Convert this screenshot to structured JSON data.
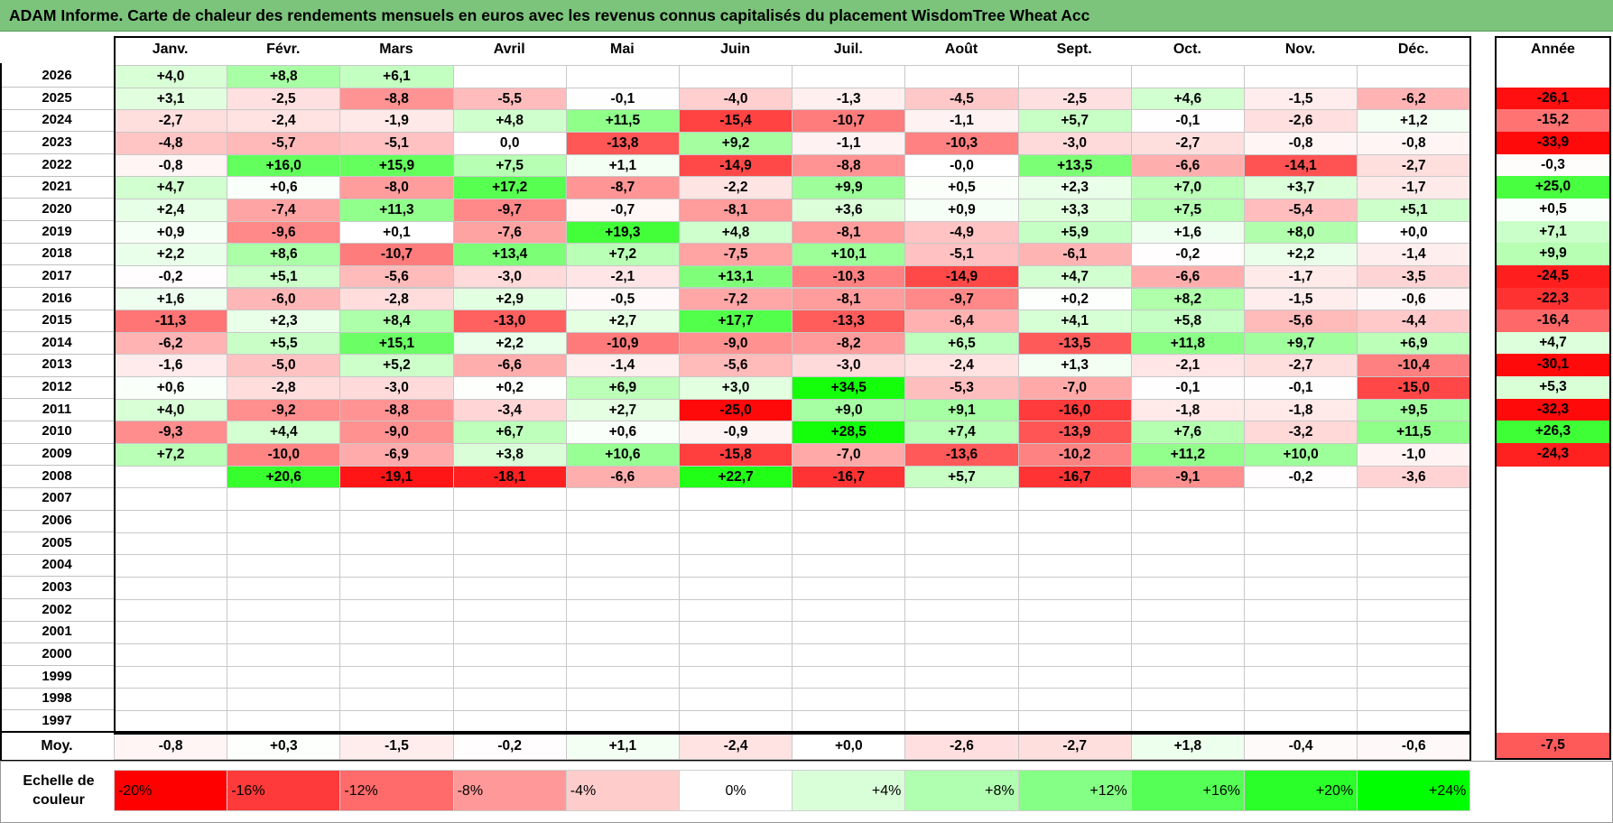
{
  "title": "ADAM Informe. Carte de chaleur des rendements mensuels en euros avec les revenus connus capitalisés du placement WisdomTree Wheat Acc",
  "year_header": "Année",
  "average_label": "Moy.",
  "legend_label": "Echelle de couleur",
  "chart_data": {
    "type": "heatmap",
    "title": "ADAM Informe. Carte de chaleur des rendements mensuels en euros avec les revenus connus capitalisés du placement WisdomTree Wheat Acc",
    "months": [
      "Janv.",
      "Févr.",
      "Mars",
      "Avril",
      "Mai",
      "Juin",
      "Juil.",
      "Août",
      "Sept.",
      "Oct.",
      "Nov.",
      "Déc."
    ],
    "years": [
      "2026",
      "2025",
      "2024",
      "2023",
      "2022",
      "2021",
      "2020",
      "2019",
      "2018",
      "2017",
      "2016",
      "2015",
      "2014",
      "2013",
      "2012",
      "2011",
      "2010",
      "2009",
      "2008",
      "2007",
      "2006",
      "2005",
      "2004",
      "2003",
      "2002",
      "2001",
      "2000",
      "1999",
      "1998",
      "1997"
    ],
    "values": [
      [
        "+4,0",
        "+8,8",
        "+6,1",
        "",
        "",
        "",
        "",
        "",
        "",
        "",
        "",
        ""
      ],
      [
        "+3,1",
        "-2,5",
        "-8,8",
        "-5,5",
        "-0,1",
        "-4,0",
        "-1,3",
        "-4,5",
        "-2,5",
        "+4,6",
        "-1,5",
        "-6,2"
      ],
      [
        "-2,7",
        "-2,4",
        "-1,9",
        "+4,8",
        "+11,5",
        "-15,4",
        "-10,7",
        "-1,1",
        "+5,7",
        "-0,1",
        "-2,6",
        "+1,2"
      ],
      [
        "-4,8",
        "-5,7",
        "-5,1",
        "0,0",
        "-13,8",
        "+9,2",
        "-1,1",
        "-10,3",
        "-3,0",
        "-2,7",
        "-0,8",
        "-0,8"
      ],
      [
        "-0,8",
        "+16,0",
        "+15,9",
        "+7,5",
        "+1,1",
        "-14,9",
        "-8,8",
        "-0,0",
        "+13,5",
        "-6,6",
        "-14,1",
        "-2,7"
      ],
      [
        "+4,7",
        "+0,6",
        "-8,0",
        "+17,2",
        "-8,7",
        "-2,2",
        "+9,9",
        "+0,5",
        "+2,3",
        "+7,0",
        "+3,7",
        "-1,7"
      ],
      [
        "+2,4",
        "-7,4",
        "+11,3",
        "-9,7",
        "-0,7",
        "-8,1",
        "+3,6",
        "+0,9",
        "+3,3",
        "+7,5",
        "-5,4",
        "+5,1"
      ],
      [
        "+0,9",
        "-9,6",
        "+0,1",
        "-7,6",
        "+19,3",
        "+4,8",
        "-8,1",
        "-4,9",
        "+5,9",
        "+1,6",
        "+8,0",
        "+0,0"
      ],
      [
        "+2,2",
        "+8,6",
        "-10,7",
        "+13,4",
        "+7,2",
        "-7,5",
        "+10,1",
        "-5,1",
        "-6,1",
        "-0,2",
        "+2,2",
        "-1,4"
      ],
      [
        "-0,2",
        "+5,1",
        "-5,6",
        "-3,0",
        "-2,1",
        "+13,1",
        "-10,3",
        "-14,9",
        "+4,7",
        "-6,6",
        "-1,7",
        "-3,5"
      ],
      [
        "+1,6",
        "-6,0",
        "-2,8",
        "+2,9",
        "-0,5",
        "-7,2",
        "-8,1",
        "-9,7",
        "+0,2",
        "+8,2",
        "-1,5",
        "-0,6"
      ],
      [
        "-11,3",
        "+2,3",
        "+8,4",
        "-13,0",
        "+2,7",
        "+17,7",
        "-13,3",
        "-6,4",
        "+4,1",
        "+5,8",
        "-5,6",
        "-4,4"
      ],
      [
        "-6,2",
        "+5,5",
        "+15,1",
        "+2,2",
        "-10,9",
        "-9,0",
        "-8,2",
        "+6,5",
        "-13,5",
        "+11,8",
        "+9,7",
        "+6,9"
      ],
      [
        "-1,6",
        "-5,0",
        "+5,2",
        "-6,6",
        "-1,4",
        "-5,6",
        "-3,0",
        "-2,4",
        "+1,3",
        "-2,1",
        "-2,7",
        "-10,4"
      ],
      [
        "+0,6",
        "-2,8",
        "-3,0",
        "+0,2",
        "+6,9",
        "+3,0",
        "+34,5",
        "-5,3",
        "-7,0",
        "-0,1",
        "-0,1",
        "-15,0"
      ],
      [
        "+4,0",
        "-9,2",
        "-8,8",
        "-3,4",
        "+2,7",
        "-25,0",
        "+9,0",
        "+9,1",
        "-16,0",
        "-1,8",
        "-1,8",
        "+9,5"
      ],
      [
        "-9,3",
        "+4,4",
        "-9,0",
        "+6,7",
        "+0,6",
        "-0,9",
        "+28,5",
        "+7,4",
        "-13,9",
        "+7,6",
        "-3,2",
        "+11,5"
      ],
      [
        "+7,2",
        "-10,0",
        "-6,9",
        "+3,8",
        "+10,6",
        "-15,8",
        "-7,0",
        "-13,6",
        "-10,2",
        "+11,2",
        "+10,0",
        "-1,0"
      ],
      [
        "",
        "+20,6",
        "-19,1",
        "-18,1",
        "-6,6",
        "+22,7",
        "-16,7",
        "+5,7",
        "-16,7",
        "-9,1",
        "-0,2",
        "-3,6"
      ],
      [
        "",
        "",
        "",
        "",
        "",
        "",
        "",
        "",
        "",
        "",
        "",
        ""
      ],
      [
        "",
        "",
        "",
        "",
        "",
        "",
        "",
        "",
        "",
        "",
        "",
        ""
      ],
      [
        "",
        "",
        "",
        "",
        "",
        "",
        "",
        "",
        "",
        "",
        "",
        ""
      ],
      [
        "",
        "",
        "",
        "",
        "",
        "",
        "",
        "",
        "",
        "",
        "",
        ""
      ],
      [
        "",
        "",
        "",
        "",
        "",
        "",
        "",
        "",
        "",
        "",
        "",
        ""
      ],
      [
        "",
        "",
        "",
        "",
        "",
        "",
        "",
        "",
        "",
        "",
        "",
        ""
      ],
      [
        "",
        "",
        "",
        "",
        "",
        "",
        "",
        "",
        "",
        "",
        "",
        ""
      ],
      [
        "",
        "",
        "",
        "",
        "",
        "",
        "",
        "",
        "",
        "",
        "",
        ""
      ],
      [
        "",
        "",
        "",
        "",
        "",
        "",
        "",
        "",
        "",
        "",
        "",
        ""
      ],
      [
        "",
        "",
        "",
        "",
        "",
        "",
        "",
        "",
        "",
        "",
        "",
        ""
      ],
      [
        "",
        "",
        "",
        "",
        "",
        "",
        "",
        "",
        "",
        "",
        "",
        ""
      ]
    ],
    "annual": [
      "",
      "-26,1",
      "-15,2",
      "-33,9",
      "-0,3",
      "+25,0",
      "+0,5",
      "+7,1",
      "+9,9",
      "-24,5",
      "-22,3",
      "-16,4",
      "+4,7",
      "-30,1",
      "+5,3",
      "-32,3",
      "+26,3",
      "-24,3",
      "",
      "",
      "",
      "",
      "",
      "",
      "",
      "",
      "",
      "",
      "",
      ""
    ],
    "averages": [
      "-0,8",
      "+0,3",
      "-1,5",
      "-0,2",
      "+1,1",
      "-2,4",
      "+0,0",
      "-2,6",
      "-2,7",
      "+1,8",
      "-0,4",
      "-0,6"
    ],
    "average_annual": "-7,5",
    "color_scale": {
      "labels": [
        "-20%",
        "-16%",
        "-12%",
        "-8%",
        "-4%",
        "0%",
        "+4%",
        "+8%",
        "+12%",
        "+16%",
        "+20%",
        "+24%"
      ],
      "colors": [
        "#ff0000",
        "#ff3a3a",
        "#ff6a6a",
        "#ff9999",
        "#ffcccc",
        "#ffffff",
        "#d9ffd9",
        "#b0ffb0",
        "#85ff85",
        "#55ff55",
        "#2aff2a",
        "#00ff00"
      ]
    }
  }
}
